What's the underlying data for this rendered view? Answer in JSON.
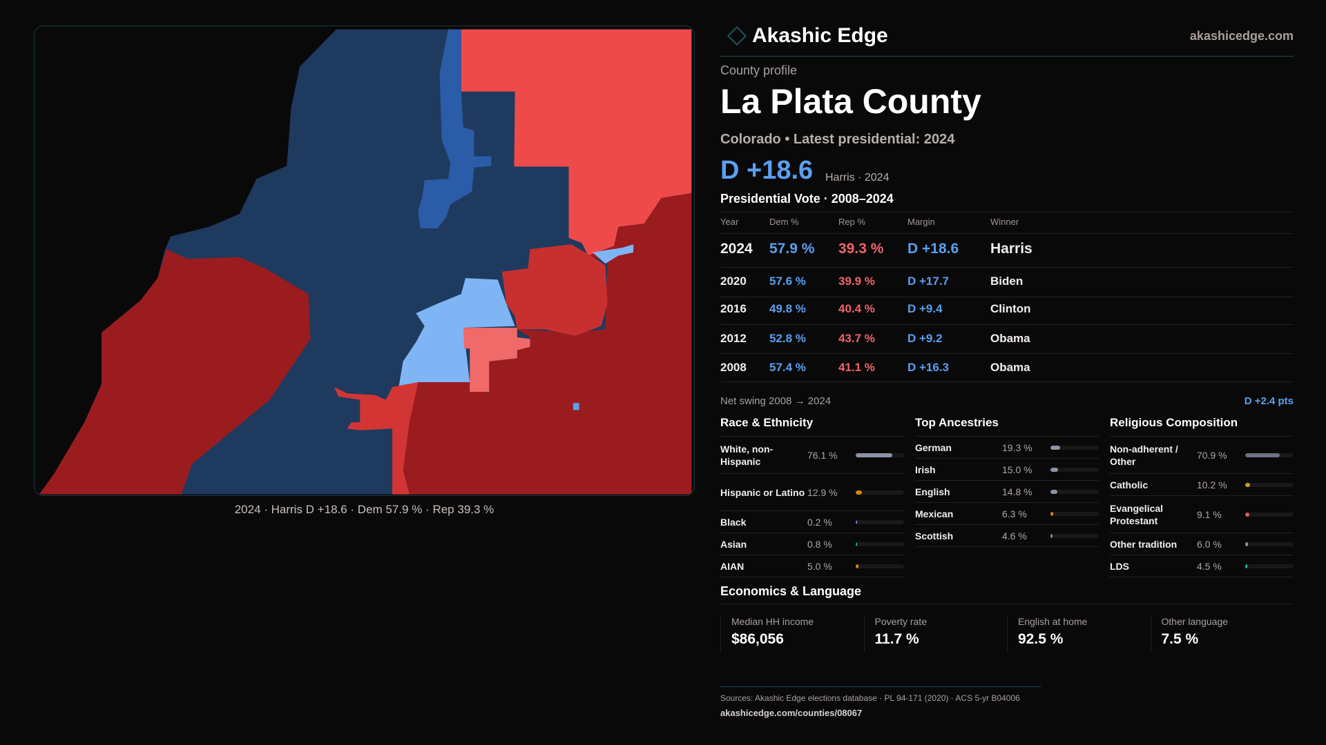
{
  "brand": {
    "name": "Akashic Edge",
    "site": "akashicedge.com"
  },
  "profile": {
    "eyebrow": "County profile",
    "title": "La Plata County",
    "subtitle": "Colorado • Latest presidential: 2024",
    "margin": "D +18.6",
    "margin_note": "Harris · 2024"
  },
  "map": {
    "caption": "2024 · Harris D +18.6 · Dem 57.9 % · Rep 39.3 %",
    "colors": {
      "strong_dem": "#1f3a5f",
      "dem": "#2b5ca8",
      "lean_dem": "#7fb5f5",
      "lean_rep": "#f06a6a",
      "rep": "#d33535",
      "strong_rep": "#9b1c1f"
    }
  },
  "vote": {
    "title": "Presidential Vote · 2008–2024",
    "headers": [
      "Year",
      "Dem %",
      "Rep %",
      "Margin",
      "Winner"
    ],
    "rows": [
      {
        "year": "2024",
        "dem": "57.9 %",
        "rep": "39.3 %",
        "margin": "D +18.6",
        "winner": "Harris"
      },
      {
        "year": "2020",
        "dem": "57.6 %",
        "rep": "39.9 %",
        "margin": "D +17.7",
        "winner": "Biden"
      },
      {
        "year": "2016",
        "dem": "49.8 %",
        "rep": "40.4 %",
        "margin": "D +9.4",
        "winner": "Clinton"
      },
      {
        "year": "2012",
        "dem": "52.8 %",
        "rep": "43.7 %",
        "margin": "D +9.2",
        "winner": "Obama"
      },
      {
        "year": "2008",
        "dem": "57.4 %",
        "rep": "41.1 %",
        "margin": "D +16.3",
        "winner": "Obama"
      }
    ]
  },
  "swing": {
    "label": "Net swing 2008 → 2024",
    "value": "D +2.4 pts"
  },
  "race": {
    "title": "Race & Ethnicity",
    "items": [
      {
        "label": "White, non-Hispanic",
        "value": "76.1 %",
        "pct": 76.1,
        "color": "#8a94a6"
      },
      {
        "label": "Hispanic or Latino",
        "value": "12.9 %",
        "pct": 12.9,
        "color": "#d4860b"
      },
      {
        "label": "Black",
        "value": "0.2 %",
        "pct": 0.2,
        "color": "#8b7fd6"
      },
      {
        "label": "Asian",
        "value": "0.8 %",
        "pct": 0.8,
        "color": "#2bb39a"
      },
      {
        "label": "AIAN",
        "value": "5.0 %",
        "pct": 5.0,
        "color": "#d4860b"
      }
    ]
  },
  "ancestry": {
    "title": "Top Ancestries",
    "items": [
      {
        "label": "German",
        "value": "19.3 %",
        "pct": 19.3,
        "color": "#8a94a6"
      },
      {
        "label": "Irish",
        "value": "15.0 %",
        "pct": 15.0,
        "color": "#8a94a6"
      },
      {
        "label": "English",
        "value": "14.8 %",
        "pct": 14.8,
        "color": "#8a94a6"
      },
      {
        "label": "Mexican",
        "value": "6.3 %",
        "pct": 6.3,
        "color": "#d4860b"
      },
      {
        "label": "Scottish",
        "value": "4.6 %",
        "pct": 4.6,
        "color": "#8a94a6"
      }
    ]
  },
  "religion": {
    "title": "Religious Composition",
    "items": [
      {
        "label": "Non-adherent / Other",
        "value": "70.9 %",
        "pct": 70.9,
        "color": "#6b7280"
      },
      {
        "label": "Catholic",
        "value": "10.2 %",
        "pct": 10.2,
        "color": "#d4a017"
      },
      {
        "label": "Evangelical Protestant",
        "value": "9.1 %",
        "pct": 9.1,
        "color": "#e05a5a"
      },
      {
        "label": "Other tradition",
        "value": "6.0 %",
        "pct": 6.0,
        "color": "#8a94a6"
      },
      {
        "label": "LDS",
        "value": "4.5 %",
        "pct": 4.5,
        "color": "#2bc0b0"
      }
    ]
  },
  "econ": {
    "title": "Economics & Language",
    "stats": [
      {
        "label": "Median HH income",
        "value": "$86,056"
      },
      {
        "label": "Poverty rate",
        "value": "11.7 %"
      },
      {
        "label": "English at home",
        "value": "92.5 %"
      },
      {
        "label": "Other language",
        "value": "7.5 %"
      }
    ]
  },
  "footer": {
    "sources": "Sources: Akashic Edge elections database · PL 94-171 (2020) · ACS 5-yr B04006",
    "url": "akashicedge.com/counties/08067"
  }
}
